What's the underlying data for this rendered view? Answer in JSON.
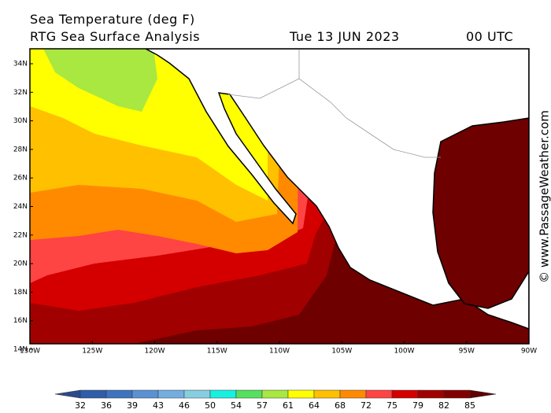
{
  "header": {
    "title": "Sea Temperature (deg F)",
    "subtitle": "RTG Sea Surface Analysis",
    "date": "Tue 13 JUN 2023",
    "time": "00 UTC"
  },
  "watermark": "© www.PassageWeather.com",
  "lat_labels": [
    "34N",
    "32N",
    "30N",
    "28N",
    "26N",
    "24N",
    "22N",
    "20N",
    "18N",
    "16N",
    "14N"
  ],
  "lon_labels": [
    "130W",
    "125W",
    "120W",
    "115W",
    "110W",
    "105W",
    "100W",
    "95W",
    "90W"
  ],
  "colorbar": {
    "labels": [
      "32",
      "36",
      "39",
      "43",
      "46",
      "50",
      "54",
      "57",
      "61",
      "64",
      "68",
      "72",
      "75",
      "79",
      "82",
      "85"
    ],
    "colors": [
      "#2a4a8a",
      "#2f5ea8",
      "#3d74bd",
      "#5a91d2",
      "#74aee0",
      "#86cfe0",
      "#18f0e0",
      "#55e060",
      "#a8e840",
      "#ffff00",
      "#ffc000",
      "#ff8a00",
      "#ff4444",
      "#d40000",
      "#a00000",
      "#820000",
      "#600000"
    ]
  }
}
